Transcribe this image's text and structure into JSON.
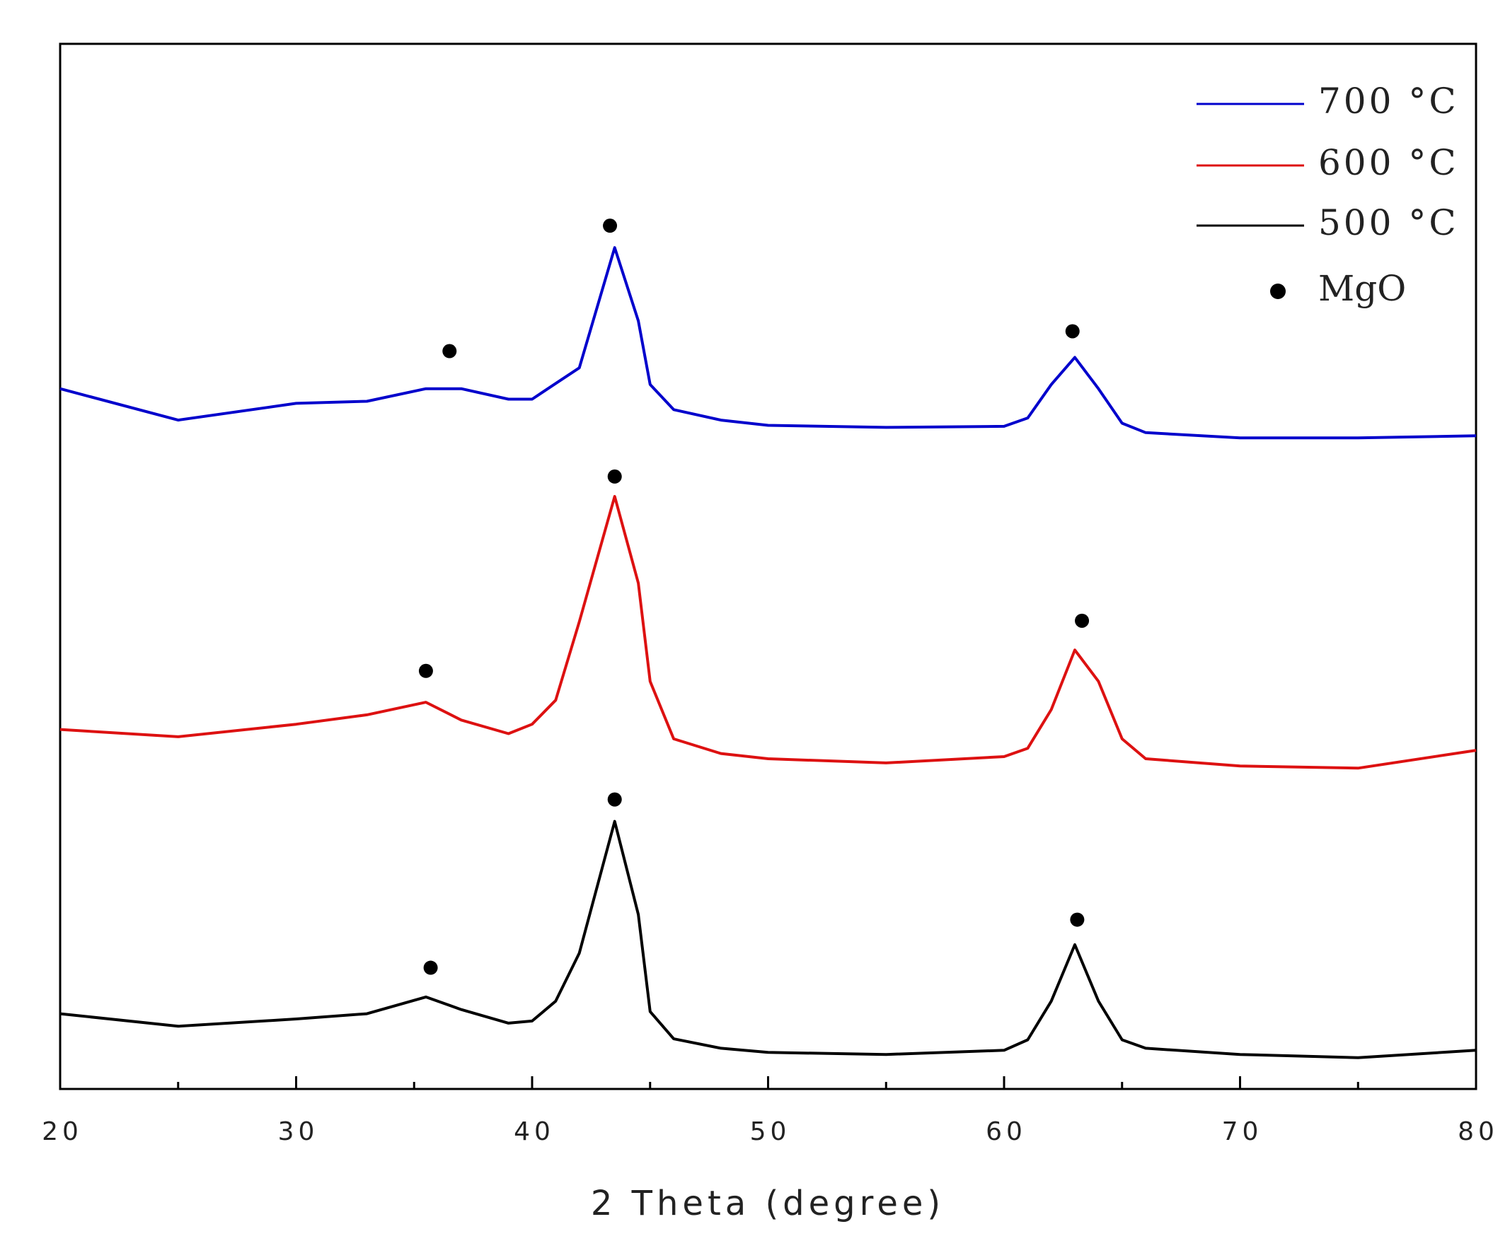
{
  "chart_data": {
    "type": "line",
    "xlabel": "2 Theta (degree)",
    "xlim": [
      20,
      80
    ],
    "xticks": [
      20,
      30,
      40,
      50,
      60,
      70,
      80
    ],
    "xminorticks": [
      25,
      35,
      45,
      55,
      65,
      75
    ],
    "ylim": [
      0,
      100
    ],
    "legend": "upper right",
    "x": [
      20,
      25,
      30,
      33,
      35.5,
      37,
      39,
      40,
      41,
      42,
      43.5,
      44.5,
      45,
      46,
      48,
      50,
      55,
      60,
      61,
      62,
      63,
      64,
      65,
      66,
      70,
      75,
      80
    ],
    "series": [
      {
        "name": "700 °C",
        "color": "#0000cc",
        "values": [
          67,
          64,
          65.6,
          65.8,
          67,
          67,
          66,
          66,
          67.5,
          69,
          80.5,
          73.5,
          67.4,
          65,
          64,
          63.5,
          63.3,
          63.4,
          64.2,
          67.4,
          70,
          67,
          63.7,
          62.8,
          62.3,
          62.3,
          62.5
        ]
      },
      {
        "name": "600 °C",
        "color": "#dd1111",
        "values": [
          34.4,
          33.7,
          34.9,
          35.8,
          37,
          35.3,
          34,
          34.9,
          37.2,
          44.7,
          56.7,
          48.4,
          39,
          33.5,
          32.1,
          31.6,
          31.2,
          31.8,
          32.6,
          36.3,
          42,
          39,
          33.5,
          31.6,
          30.9,
          30.7,
          32.4
        ]
      },
      {
        "name": "500 °C",
        "color": "#000000",
        "values": [
          7.2,
          6,
          6.7,
          7.2,
          8.8,
          7.6,
          6.3,
          6.5,
          8.4,
          13,
          25.6,
          16.7,
          7.4,
          4.8,
          3.9,
          3.5,
          3.3,
          3.7,
          4.7,
          8.4,
          13.8,
          8.4,
          4.7,
          3.9,
          3.3,
          3,
          3.7
        ]
      }
    ],
    "markers": {
      "name": "MgO",
      "color": "#000000",
      "x": [
        36.5,
        43.3,
        62.9,
        35.5,
        43.5,
        63.3,
        35.7,
        43.5,
        63.1
      ],
      "y": [
        70.6,
        82.6,
        72.5,
        40,
        58.6,
        44.8,
        11.6,
        27.7,
        16.2
      ]
    }
  }
}
